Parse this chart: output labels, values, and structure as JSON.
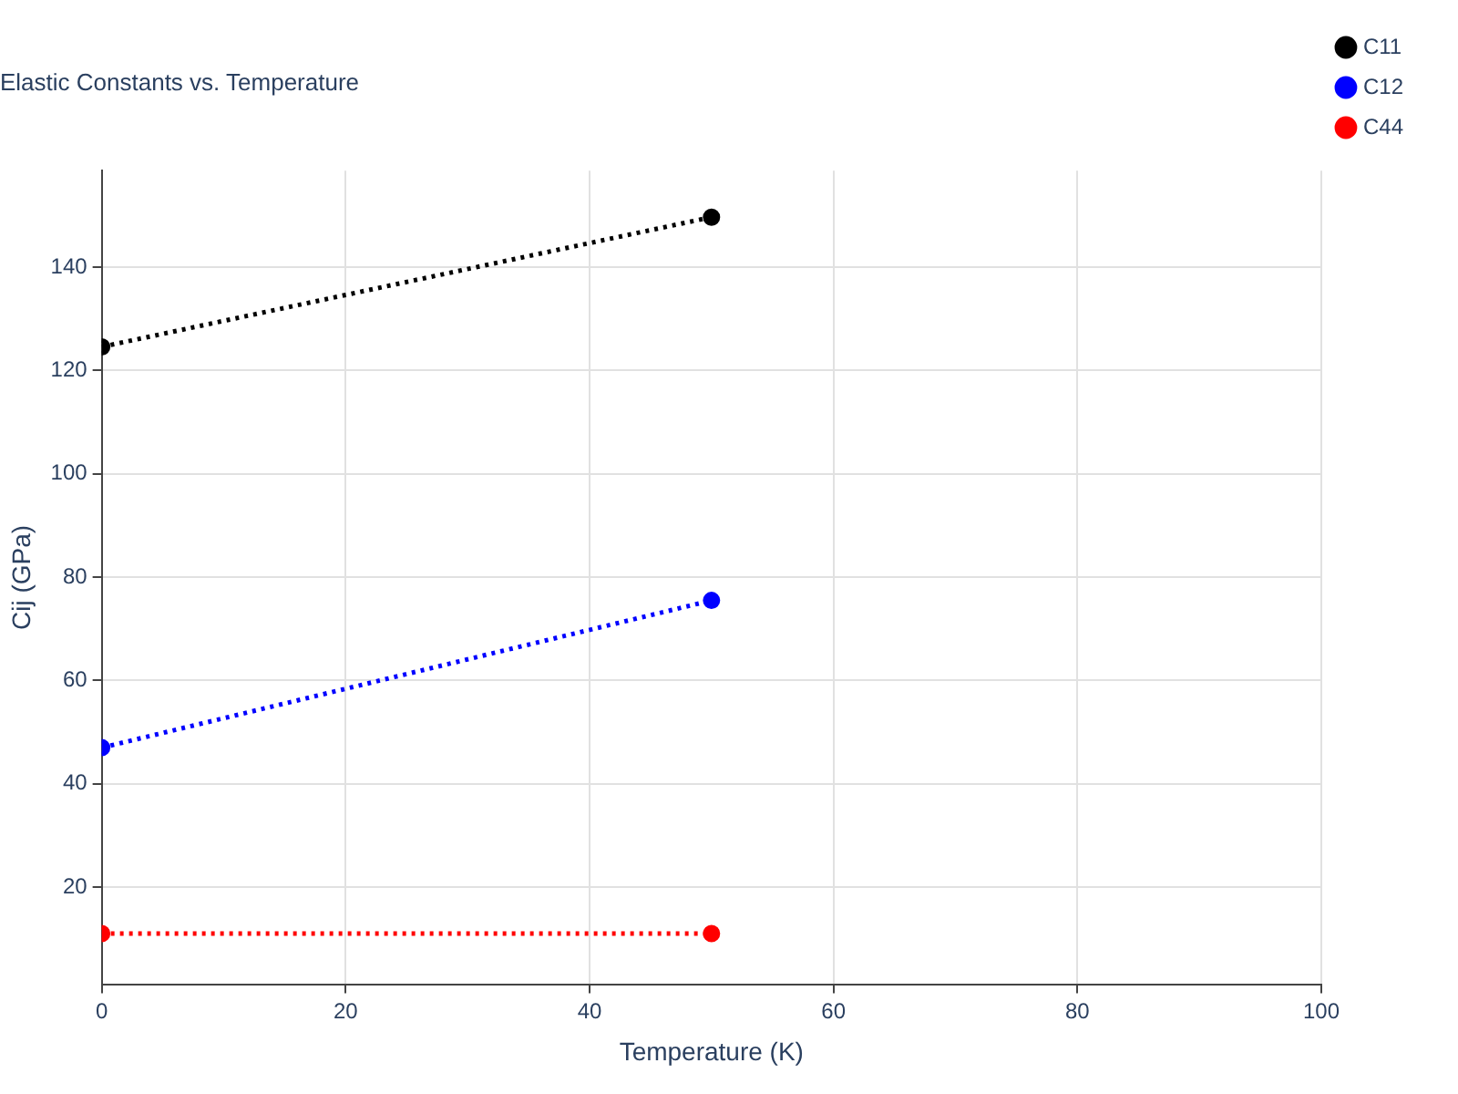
{
  "chart_data": {
    "type": "line",
    "title": "Elastic Constants vs. Temperature",
    "xlabel": "Temperature (K)",
    "ylabel": "Cij (GPa)",
    "x": [
      0,
      50
    ],
    "series": [
      {
        "name": "C11",
        "color": "#000000",
        "values": [
          124.6,
          149.7
        ]
      },
      {
        "name": "C12",
        "color": "#0000ff",
        "values": [
          47.0,
          75.5
        ]
      },
      {
        "name": "C44",
        "color": "#ff0000",
        "values": [
          11.0,
          11.0
        ]
      }
    ],
    "xlim": [
      0,
      100
    ],
    "xticks": [
      0,
      20,
      40,
      60,
      80,
      100
    ],
    "ylim": [
      1.2,
      158.7
    ],
    "yticks": [
      20,
      40,
      60,
      80,
      100,
      120,
      140
    ],
    "grid": true,
    "legend": "top right",
    "marker": "circle",
    "line_style": "dotted"
  }
}
